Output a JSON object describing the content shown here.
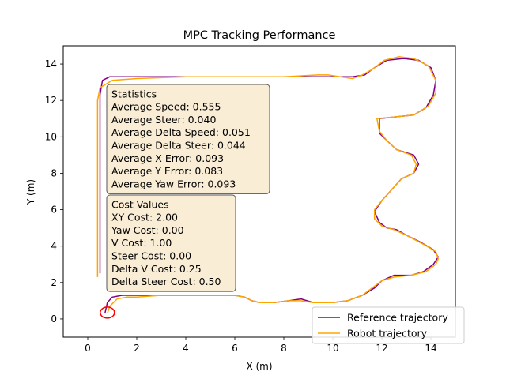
{
  "chart_data": {
    "type": "line",
    "title": "MPC Tracking Performance",
    "xlabel": "X (m)",
    "ylabel": "Y (m)",
    "xlim": [
      -1,
      15
    ],
    "ylim": [
      -1,
      15
    ],
    "xticks": [
      0,
      2,
      4,
      6,
      8,
      10,
      12,
      14
    ],
    "yticks": [
      0,
      2,
      4,
      6,
      8,
      10,
      12,
      14
    ],
    "grid": false,
    "legend_position": "bottom-right",
    "series": [
      {
        "name": "Reference trajectory",
        "color": "#800080",
        "points": [
          [
            0.7,
            0.3
          ],
          [
            0.8,
            0.9
          ],
          [
            1.0,
            1.2
          ],
          [
            1.4,
            1.3
          ],
          [
            2.0,
            1.3
          ],
          [
            3.0,
            1.3
          ],
          [
            4.0,
            1.3
          ],
          [
            5.0,
            1.3
          ],
          [
            6.0,
            1.3
          ],
          [
            6.4,
            1.2
          ],
          [
            6.7,
            1.0
          ],
          [
            7.0,
            0.9
          ],
          [
            7.6,
            0.9
          ],
          [
            8.2,
            1.0
          ],
          [
            8.7,
            1.1
          ],
          [
            9.2,
            0.9
          ],
          [
            10.0,
            0.9
          ],
          [
            10.6,
            1.0
          ],
          [
            11.2,
            1.3
          ],
          [
            11.7,
            1.7
          ],
          [
            12.0,
            2.1
          ],
          [
            12.5,
            2.4
          ],
          [
            13.2,
            2.4
          ],
          [
            13.7,
            2.6
          ],
          [
            14.1,
            3.0
          ],
          [
            14.3,
            3.4
          ],
          [
            14.1,
            3.8
          ],
          [
            13.6,
            4.2
          ],
          [
            13.0,
            4.6
          ],
          [
            12.6,
            4.9
          ],
          [
            12.2,
            5.0
          ],
          [
            11.9,
            5.3
          ],
          [
            11.7,
            5.9
          ],
          [
            12.0,
            6.5
          ],
          [
            12.4,
            7.1
          ],
          [
            12.8,
            7.7
          ],
          [
            13.3,
            8.0
          ],
          [
            13.5,
            8.5
          ],
          [
            13.3,
            9.0
          ],
          [
            12.6,
            9.3
          ],
          [
            12.2,
            9.8
          ],
          [
            11.9,
            10.2
          ],
          [
            11.9,
            11.0
          ],
          [
            12.6,
            11.1
          ],
          [
            13.3,
            11.2
          ],
          [
            13.8,
            11.6
          ],
          [
            14.1,
            12.3
          ],
          [
            14.2,
            13.1
          ],
          [
            14.0,
            13.8
          ],
          [
            13.5,
            14.2
          ],
          [
            12.9,
            14.3
          ],
          [
            12.2,
            14.2
          ],
          [
            11.7,
            13.8
          ],
          [
            11.3,
            13.4
          ],
          [
            10.8,
            13.3
          ],
          [
            10.4,
            13.3
          ],
          [
            9.9,
            13.3
          ],
          [
            9.5,
            13.3
          ],
          [
            8.0,
            13.3
          ],
          [
            6.0,
            13.3
          ],
          [
            4.0,
            13.3
          ],
          [
            2.0,
            13.3
          ],
          [
            0.9,
            13.3
          ],
          [
            0.6,
            13.1
          ],
          [
            0.5,
            12.3
          ],
          [
            0.5,
            10.0
          ],
          [
            0.5,
            7.5
          ],
          [
            0.5,
            5.0
          ],
          [
            0.5,
            2.5
          ]
        ]
      },
      {
        "name": "Robot trajectory",
        "color": "#ffa500",
        "points": [
          [
            0.8,
            0.3
          ],
          [
            0.9,
            0.7
          ],
          [
            1.2,
            1.1
          ],
          [
            1.6,
            1.2
          ],
          [
            2.0,
            1.2
          ],
          [
            3.0,
            1.3
          ],
          [
            4.0,
            1.3
          ],
          [
            5.0,
            1.3
          ],
          [
            6.0,
            1.3
          ],
          [
            6.4,
            1.2
          ],
          [
            6.7,
            1.0
          ],
          [
            7.0,
            0.9
          ],
          [
            7.6,
            0.9
          ],
          [
            8.2,
            1.0
          ],
          [
            8.7,
            1.0
          ],
          [
            9.2,
            0.9
          ],
          [
            10.0,
            0.9
          ],
          [
            10.6,
            1.0
          ],
          [
            11.2,
            1.3
          ],
          [
            11.6,
            1.7
          ],
          [
            12.0,
            2.1
          ],
          [
            12.5,
            2.3
          ],
          [
            13.2,
            2.4
          ],
          [
            13.8,
            2.6
          ],
          [
            14.2,
            3.0
          ],
          [
            14.3,
            3.3
          ],
          [
            14.2,
            3.7
          ],
          [
            13.7,
            4.1
          ],
          [
            13.0,
            4.6
          ],
          [
            12.5,
            4.9
          ],
          [
            12.0,
            5.1
          ],
          [
            11.7,
            5.5
          ],
          [
            11.7,
            6.0
          ],
          [
            12.0,
            6.5
          ],
          [
            12.4,
            7.1
          ],
          [
            12.8,
            7.7
          ],
          [
            13.3,
            8.0
          ],
          [
            13.4,
            8.5
          ],
          [
            13.2,
            9.0
          ],
          [
            12.6,
            9.3
          ],
          [
            12.2,
            9.8
          ],
          [
            11.9,
            10.3
          ],
          [
            11.8,
            11.0
          ],
          [
            12.6,
            11.1
          ],
          [
            13.3,
            11.2
          ],
          [
            13.9,
            11.7
          ],
          [
            14.2,
            12.4
          ],
          [
            14.2,
            13.1
          ],
          [
            13.9,
            13.9
          ],
          [
            13.3,
            14.3
          ],
          [
            12.7,
            14.4
          ],
          [
            12.1,
            14.2
          ],
          [
            11.6,
            13.7
          ],
          [
            11.2,
            13.4
          ],
          [
            10.8,
            13.2
          ],
          [
            10.3,
            13.3
          ],
          [
            9.8,
            13.4
          ],
          [
            9.4,
            13.4
          ],
          [
            8.0,
            13.3
          ],
          [
            6.0,
            13.3
          ],
          [
            4.0,
            13.3
          ],
          [
            2.0,
            13.2
          ],
          [
            1.0,
            13.1
          ],
          [
            0.5,
            12.7
          ],
          [
            0.4,
            12.0
          ],
          [
            0.4,
            10.0
          ],
          [
            0.4,
            7.5
          ],
          [
            0.4,
            5.0
          ],
          [
            0.4,
            2.3
          ]
        ]
      }
    ],
    "start_marker": {
      "x": 0.8,
      "y": 0.35,
      "color": "#ff0000"
    },
    "statistics_box": {
      "lines": [
        "Statistics",
        "Average Speed: 0.555",
        "Average Steer: 0.040",
        "Average Delta Speed: 0.051",
        "Average Delta Steer: 0.044",
        "Average X Error: 0.093",
        "Average Y Error: 0.083",
        "Average Yaw Error: 0.093"
      ]
    },
    "cost_box": {
      "lines": [
        "Cost Values",
        "XY Cost: 2.00",
        "Yaw Cost: 0.00",
        "V Cost: 1.00",
        "Steer Cost: 0.00",
        "Delta V Cost: 0.25",
        "Delta Steer Cost: 0.50"
      ]
    },
    "box_fill": "#f5deb3"
  }
}
